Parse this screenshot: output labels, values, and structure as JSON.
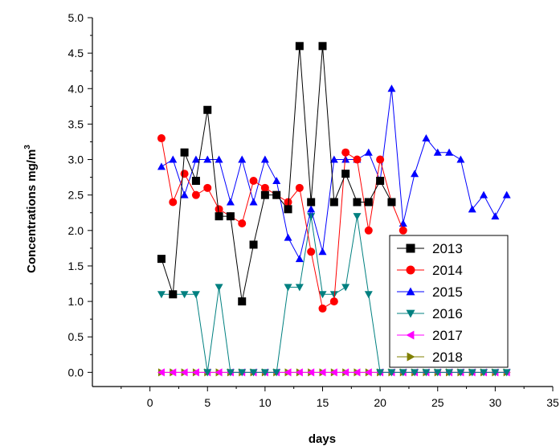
{
  "chart_data": {
    "type": "line",
    "xlabel": "days",
    "ylabel": "Concentrations mg/m",
    "ylabel_sup": "3",
    "xlim": [
      -5,
      35
    ],
    "ylim": [
      -0.2,
      5.0
    ],
    "xticks": [
      "0",
      "5",
      "10",
      "15",
      "20",
      "25",
      "30",
      "35"
    ],
    "yticks": [
      "0.0",
      "0.5",
      "1.0",
      "1.5",
      "2.0",
      "2.5",
      "3.0",
      "3.5",
      "4.0",
      "4.5",
      "5.0"
    ],
    "legend_position": "bottom-right",
    "series": [
      {
        "name": "2013",
        "color": "#000000",
        "marker": "square",
        "x": [
          1,
          2,
          3,
          4,
          5,
          6,
          7,
          8,
          9,
          10,
          11,
          12,
          13,
          14,
          15,
          16,
          17,
          18,
          19,
          20,
          21
        ],
        "y": [
          1.6,
          1.1,
          3.1,
          2.7,
          3.7,
          2.2,
          2.2,
          1.0,
          1.8,
          2.5,
          2.5,
          2.3,
          4.6,
          2.4,
          4.6,
          2.4,
          2.8,
          2.4,
          2.4,
          2.7,
          2.4
        ]
      },
      {
        "name": "2014",
        "color": "#ff0000",
        "marker": "circle",
        "x": [
          1,
          2,
          3,
          4,
          5,
          6,
          7,
          8,
          9,
          10,
          11,
          12,
          13,
          14,
          15,
          16,
          17,
          18,
          19,
          20,
          21,
          22
        ],
        "y": [
          3.3,
          2.4,
          2.8,
          2.5,
          2.6,
          2.3,
          2.2,
          2.1,
          2.7,
          2.6,
          2.5,
          2.4,
          2.6,
          1.7,
          0.9,
          1.0,
          3.1,
          3.0,
          2.0,
          3.0,
          2.4,
          2.0
        ]
      },
      {
        "name": "2015",
        "color": "#0000ff",
        "marker": "triangle-up",
        "x": [
          1,
          2,
          3,
          4,
          5,
          6,
          7,
          8,
          9,
          10,
          11,
          12,
          13,
          14,
          15,
          16,
          17,
          18,
          19,
          20,
          21,
          22,
          23,
          24,
          25,
          26,
          27,
          28,
          29,
          30,
          31
        ],
        "y": [
          2.9,
          3.0,
          2.5,
          3.0,
          3.0,
          3.0,
          2.4,
          3.0,
          2.4,
          3.0,
          2.7,
          1.9,
          1.6,
          2.3,
          1.7,
          3.0,
          3.0,
          3.0,
          3.1,
          2.7,
          4.0,
          2.1,
          2.8,
          3.3,
          3.1,
          3.1,
          3.0,
          2.3,
          2.5,
          2.2,
          2.5
        ]
      },
      {
        "name": "2016",
        "color": "#008080",
        "marker": "triangle-down",
        "x": [
          1,
          2,
          3,
          4,
          5,
          6,
          7,
          8,
          9,
          10,
          11,
          12,
          13,
          14,
          15,
          16,
          17,
          18,
          19,
          20,
          21,
          22,
          23,
          24,
          25,
          26,
          27,
          28,
          29,
          30,
          31
        ],
        "y": [
          1.1,
          1.1,
          1.1,
          1.1,
          0.0,
          1.2,
          0.0,
          0.0,
          0.0,
          0.0,
          0.0,
          1.2,
          1.2,
          2.2,
          1.1,
          1.1,
          1.2,
          2.2,
          1.1,
          0.0,
          0.0,
          0.0,
          0.0,
          0.0,
          0.0,
          0.0,
          0.0,
          0.0,
          0.0,
          0.0,
          0.0
        ]
      },
      {
        "name": "2017",
        "color": "#ff00ff",
        "marker": "triangle-left",
        "x": [
          1,
          2,
          3,
          4,
          5,
          6,
          7,
          8,
          9,
          10,
          11,
          12,
          13,
          14,
          15,
          16,
          17,
          18,
          19,
          20,
          21,
          22,
          23,
          24,
          25,
          26,
          27,
          28,
          29,
          30,
          31
        ],
        "y": [
          0,
          0,
          0,
          0,
          0,
          0,
          0,
          0,
          0,
          0,
          0,
          0,
          0,
          0,
          0,
          0,
          0,
          0,
          0,
          0,
          0,
          0,
          0,
          0,
          0,
          0,
          0,
          0,
          0,
          0,
          0
        ]
      },
      {
        "name": "2018",
        "color": "#808000",
        "marker": "triangle-right",
        "x": [
          1,
          2,
          3,
          4,
          5,
          6,
          7,
          8,
          9,
          10,
          11,
          12,
          13,
          14,
          15,
          16,
          17,
          18,
          19,
          20,
          21,
          22,
          23,
          24,
          25,
          26,
          27,
          28,
          29,
          30,
          31
        ],
        "y": [
          0,
          0,
          0,
          0,
          0,
          0,
          0,
          0,
          0,
          0,
          0,
          0,
          0,
          0,
          0,
          0,
          0,
          0,
          0,
          0,
          0,
          0,
          0,
          0,
          0,
          0,
          0,
          0,
          0,
          0,
          0
        ]
      }
    ]
  }
}
